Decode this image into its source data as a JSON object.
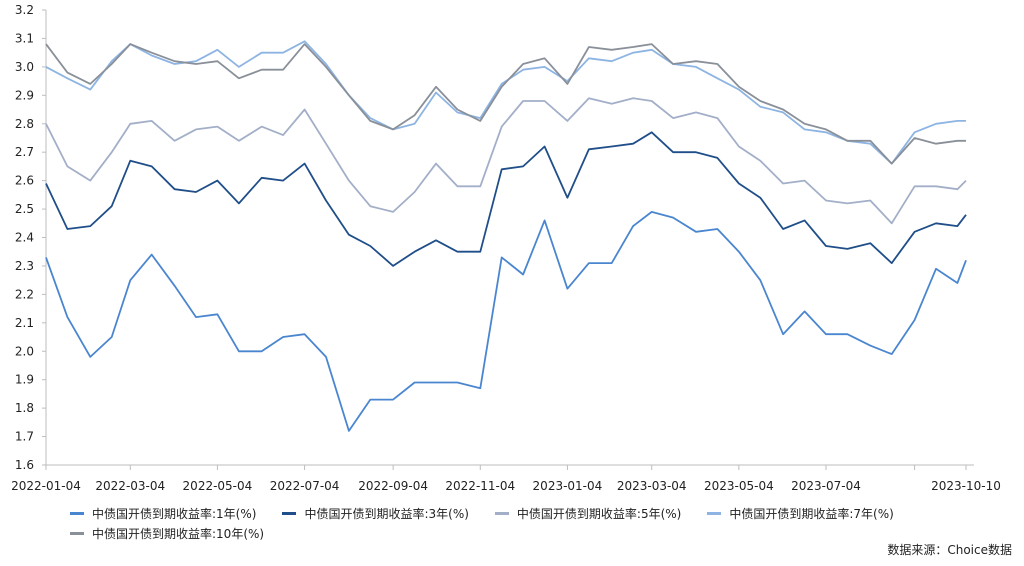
{
  "chart_data": {
    "type": "line",
    "title": "",
    "xlabel": "",
    "ylabel": "",
    "ylim": [
      1.6,
      3.2
    ],
    "y_ticks": [
      "3.2",
      "3.1",
      "3.0",
      "2.9",
      "2.8",
      "2.7",
      "2.6",
      "2.5",
      "2.4",
      "2.3",
      "2.2",
      "2.1",
      "2.0",
      "1.9",
      "1.8",
      "1.7",
      "1.6"
    ],
    "x_ticks": [
      "2022-01-04",
      "2022-03-04",
      "2022-05-04",
      "2022-07-04",
      "2022-09-04",
      "2022-11-04",
      "2023-01-04",
      "2023-03-04",
      "2023-05-04",
      "2023-07-04",
      "2023-10-10"
    ],
    "grid": false,
    "legend_position": "bottom",
    "x": [
      "2022-01-04",
      "2022-01-19",
      "2022-02-04",
      "2022-02-19",
      "2022-03-04",
      "2022-03-19",
      "2022-04-04",
      "2022-04-19",
      "2022-05-04",
      "2022-05-19",
      "2022-06-04",
      "2022-06-19",
      "2022-07-04",
      "2022-07-19",
      "2022-08-04",
      "2022-08-19",
      "2022-09-04",
      "2022-09-19",
      "2022-10-04",
      "2022-10-19",
      "2022-11-04",
      "2022-11-19",
      "2022-12-04",
      "2022-12-19",
      "2023-01-04",
      "2023-01-19",
      "2023-02-04",
      "2023-02-19",
      "2023-03-04",
      "2023-03-19",
      "2023-04-04",
      "2023-04-19",
      "2023-05-04",
      "2023-05-19",
      "2023-06-04",
      "2023-06-19",
      "2023-07-04",
      "2023-07-19",
      "2023-08-04",
      "2023-08-19",
      "2023-09-04",
      "2023-09-19",
      "2023-10-04",
      "2023-10-10"
    ],
    "series": [
      {
        "name": "中债国开债到期收益率:1年(%)",
        "color": "#4a86d0",
        "values": [
          2.33,
          2.12,
          1.98,
          2.05,
          2.25,
          2.34,
          2.23,
          2.12,
          2.13,
          2.0,
          2.0,
          2.05,
          2.06,
          1.98,
          1.72,
          1.83,
          1.83,
          1.89,
          1.89,
          1.89,
          1.87,
          2.33,
          2.27,
          2.46,
          2.22,
          2.31,
          2.31,
          2.44,
          2.49,
          2.47,
          2.42,
          2.43,
          2.35,
          2.25,
          2.06,
          2.14,
          2.06,
          2.06,
          2.02,
          1.99,
          2.11,
          2.29,
          2.24,
          2.32
        ]
      },
      {
        "name": "中债国开债到期收益率:3年(%)",
        "color": "#1f4e89",
        "values": [
          2.59,
          2.43,
          2.44,
          2.51,
          2.67,
          2.65,
          2.57,
          2.56,
          2.6,
          2.52,
          2.61,
          2.6,
          2.66,
          2.53,
          2.41,
          2.37,
          2.3,
          2.35,
          2.39,
          2.35,
          2.35,
          2.64,
          2.65,
          2.72,
          2.54,
          2.71,
          2.72,
          2.73,
          2.77,
          2.7,
          2.7,
          2.68,
          2.59,
          2.54,
          2.43,
          2.46,
          2.37,
          2.36,
          2.38,
          2.31,
          2.42,
          2.45,
          2.44,
          2.48
        ]
      },
      {
        "name": "中债国开债到期收益率:5年(%)",
        "color": "#a3afc8",
        "values": [
          2.8,
          2.65,
          2.6,
          2.7,
          2.8,
          2.81,
          2.74,
          2.78,
          2.79,
          2.74,
          2.79,
          2.76,
          2.85,
          2.73,
          2.6,
          2.51,
          2.49,
          2.56,
          2.66,
          2.58,
          2.58,
          2.79,
          2.88,
          2.88,
          2.81,
          2.89,
          2.87,
          2.89,
          2.88,
          2.82,
          2.84,
          2.82,
          2.72,
          2.67,
          2.59,
          2.6,
          2.53,
          2.52,
          2.53,
          2.45,
          2.58,
          2.58,
          2.57,
          2.6
        ]
      },
      {
        "name": "中债国开债到期收益率:7年(%)",
        "color": "#8db4e2",
        "values": [
          3.0,
          2.96,
          2.92,
          3.02,
          3.08,
          3.04,
          3.01,
          3.02,
          3.06,
          3.0,
          3.05,
          3.05,
          3.09,
          3.01,
          2.9,
          2.82,
          2.78,
          2.8,
          2.91,
          2.84,
          2.82,
          2.94,
          2.99,
          3.0,
          2.95,
          3.03,
          3.02,
          3.05,
          3.06,
          3.01,
          3.0,
          2.96,
          2.92,
          2.86,
          2.84,
          2.78,
          2.77,
          2.74,
          2.73,
          2.66,
          2.77,
          2.8,
          2.81,
          2.81
        ]
      },
      {
        "name": "中债国开债到期收益率:10年(%)",
        "color": "#8a9099",
        "values": [
          3.08,
          2.98,
          2.94,
          3.01,
          3.08,
          3.05,
          3.02,
          3.01,
          3.02,
          2.96,
          2.99,
          2.99,
          3.08,
          3.0,
          2.9,
          2.81,
          2.78,
          2.83,
          2.93,
          2.85,
          2.81,
          2.93,
          3.01,
          3.03,
          2.94,
          3.07,
          3.06,
          3.07,
          3.08,
          3.01,
          3.02,
          3.01,
          2.93,
          2.88,
          2.85,
          2.8,
          2.78,
          2.74,
          2.74,
          2.66,
          2.75,
          2.73,
          2.74,
          2.74
        ]
      }
    ]
  },
  "source": "数据来源：Choice数据"
}
